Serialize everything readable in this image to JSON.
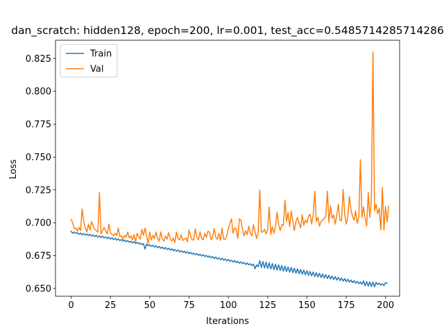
{
  "chart_data": {
    "type": "line",
    "title": "dan_scratch: hidden128, epoch=200, lr=0.001, test_acc=0.5485714285714286",
    "xlabel": "Iterations",
    "ylabel": "Loss",
    "xlim": [
      -9.95,
      208.95
    ],
    "ylim": [
      0.6441,
      0.8389
    ],
    "xticks": [
      0,
      25,
      50,
      75,
      100,
      125,
      150,
      175,
      200
    ],
    "yticks": [
      0.65,
      0.675,
      0.7,
      0.725,
      0.75,
      0.775,
      0.8,
      0.825
    ],
    "xtick_labels": [
      "0",
      "25",
      "50",
      "75",
      "100",
      "125",
      "150",
      "175",
      "200"
    ],
    "ytick_labels": [
      "0.650",
      "0.675",
      "0.700",
      "0.725",
      "0.750",
      "0.775",
      "0.800",
      "0.825"
    ],
    "grid": false,
    "legend_position": "upper-left",
    "series": [
      {
        "name": "Train",
        "color": "#1f77b4",
        "values": [
          0.6935,
          0.692,
          0.693,
          0.6918,
          0.6925,
          0.6912,
          0.6922,
          0.6908,
          0.6918,
          0.6905,
          0.6915,
          0.6902,
          0.6912,
          0.6898,
          0.6908,
          0.6895,
          0.6905,
          0.6891,
          0.6901,
          0.6888,
          0.6898,
          0.6885,
          0.6893,
          0.688,
          0.689,
          0.6876,
          0.6886,
          0.6872,
          0.6882,
          0.6868,
          0.6878,
          0.6864,
          0.6873,
          0.686,
          0.6869,
          0.6855,
          0.6865,
          0.6851,
          0.686,
          0.6847,
          0.6856,
          0.6842,
          0.6851,
          0.6838,
          0.6847,
          0.6833,
          0.6842,
          0.68,
          0.6838,
          0.6824,
          0.6833,
          0.682,
          0.6829,
          0.6815,
          0.6825,
          0.681,
          0.682,
          0.6806,
          0.6815,
          0.6801,
          0.6811,
          0.6797,
          0.6806,
          0.6792,
          0.6802,
          0.6788,
          0.6797,
          0.6783,
          0.6793,
          0.6779,
          0.6788,
          0.6774,
          0.6784,
          0.677,
          0.6779,
          0.6765,
          0.6775,
          0.6761,
          0.677,
          0.6756,
          0.6766,
          0.6752,
          0.6761,
          0.6747,
          0.6757,
          0.6743,
          0.6752,
          0.6738,
          0.6748,
          0.6733,
          0.6743,
          0.6728,
          0.6739,
          0.6724,
          0.6734,
          0.6719,
          0.673,
          0.6715,
          0.6725,
          0.671,
          0.6721,
          0.6706,
          0.6716,
          0.6701,
          0.6712,
          0.6697,
          0.6707,
          0.6692,
          0.6703,
          0.6688,
          0.6698,
          0.6683,
          0.6694,
          0.6679,
          0.6689,
          0.6674,
          0.6685,
          0.665,
          0.668,
          0.6665,
          0.6712,
          0.666,
          0.6705,
          0.6656,
          0.67,
          0.6652,
          0.6695,
          0.6648,
          0.669,
          0.6644,
          0.6685,
          0.664,
          0.668,
          0.6636,
          0.6675,
          0.6632,
          0.667,
          0.6628,
          0.6665,
          0.6624,
          0.666,
          0.662,
          0.6655,
          0.6616,
          0.665,
          0.6612,
          0.6645,
          0.6608,
          0.664,
          0.6604,
          0.6635,
          0.66,
          0.663,
          0.6596,
          0.6625,
          0.6592,
          0.662,
          0.6588,
          0.6615,
          0.6584,
          0.661,
          0.658,
          0.6605,
          0.6576,
          0.66,
          0.6572,
          0.6595,
          0.6568,
          0.659,
          0.6564,
          0.6585,
          0.656,
          0.658,
          0.6556,
          0.6575,
          0.6552,
          0.657,
          0.6548,
          0.6565,
          0.6544,
          0.656,
          0.654,
          0.6555,
          0.6536,
          0.655,
          0.6532,
          0.6558,
          0.652,
          0.6552,
          0.6518,
          0.655,
          0.6515,
          0.6548,
          0.6512,
          0.6547,
          0.653,
          0.654,
          0.6525,
          0.6535,
          0.6522,
          0.6545,
          0.654
        ]
      },
      {
        "name": "Val",
        "color": "#ff7f0e",
        "values": [
          0.7025,
          0.7,
          0.6955,
          0.696,
          0.6935,
          0.6965,
          0.694,
          0.7105,
          0.701,
          0.696,
          0.693,
          0.699,
          0.6945,
          0.701,
          0.6975,
          0.695,
          0.694,
          0.693,
          0.723,
          0.6915,
          0.694,
          0.6965,
          0.6935,
          0.6915,
          0.699,
          0.6925,
          0.691,
          0.69,
          0.692,
          0.6905,
          0.696,
          0.6895,
          0.69,
          0.6875,
          0.6905,
          0.689,
          0.693,
          0.6885,
          0.69,
          0.687,
          0.691,
          0.6855,
          0.692,
          0.6895,
          0.6875,
          0.695,
          0.6905,
          0.696,
          0.69,
          0.684,
          0.693,
          0.687,
          0.6905,
          0.688,
          0.693,
          0.688,
          0.686,
          0.693,
          0.688,
          0.686,
          0.69,
          0.6875,
          0.6925,
          0.688,
          0.686,
          0.6885,
          0.685,
          0.693,
          0.688,
          0.687,
          0.691,
          0.6865,
          0.6875,
          0.6885,
          0.6855,
          0.6945,
          0.69,
          0.687,
          0.687,
          0.6955,
          0.689,
          0.687,
          0.693,
          0.688,
          0.687,
          0.692,
          0.689,
          0.6935,
          0.693,
          0.687,
          0.6895,
          0.6955,
          0.689,
          0.6875,
          0.692,
          0.6865,
          0.696,
          0.6875,
          0.6875,
          0.69,
          0.6955,
          0.6995,
          0.703,
          0.692,
          0.696,
          0.6955,
          0.688,
          0.703,
          0.702,
          0.695,
          0.69,
          0.694,
          0.691,
          0.6975,
          0.692,
          0.69,
          0.6985,
          0.693,
          0.688,
          0.693,
          0.725,
          0.693,
          0.693,
          0.695,
          0.6915,
          0.695,
          0.712,
          0.691,
          0.697,
          0.692,
          0.697,
          0.708,
          0.6985,
          0.694,
          0.6985,
          0.698,
          0.717,
          0.701,
          0.708,
          0.697,
          0.709,
          0.7015,
          0.694,
          0.701,
          0.704,
          0.7,
          0.696,
          0.706,
          0.698,
          0.702,
          0.7,
          0.705,
          0.7065,
          0.699,
          0.706,
          0.724,
          0.701,
          0.704,
          0.6975,
          0.701,
          0.702,
          0.7035,
          0.705,
          0.724,
          0.7,
          0.713,
          0.7035,
          0.706,
          0.699,
          0.706,
          0.714,
          0.702,
          0.7015,
          0.7255,
          0.707,
          0.699,
          0.704,
          0.72,
          0.71,
          0.705,
          0.702,
          0.709,
          0.6995,
          0.7045,
          0.748,
          0.704,
          0.712,
          0.7035,
          0.6975,
          0.723,
          0.704,
          0.718,
          0.83,
          0.709,
          0.714,
          0.707,
          0.711,
          0.6945,
          0.727,
          0.6945,
          0.7125,
          0.7005,
          0.7125
        ]
      }
    ]
  }
}
